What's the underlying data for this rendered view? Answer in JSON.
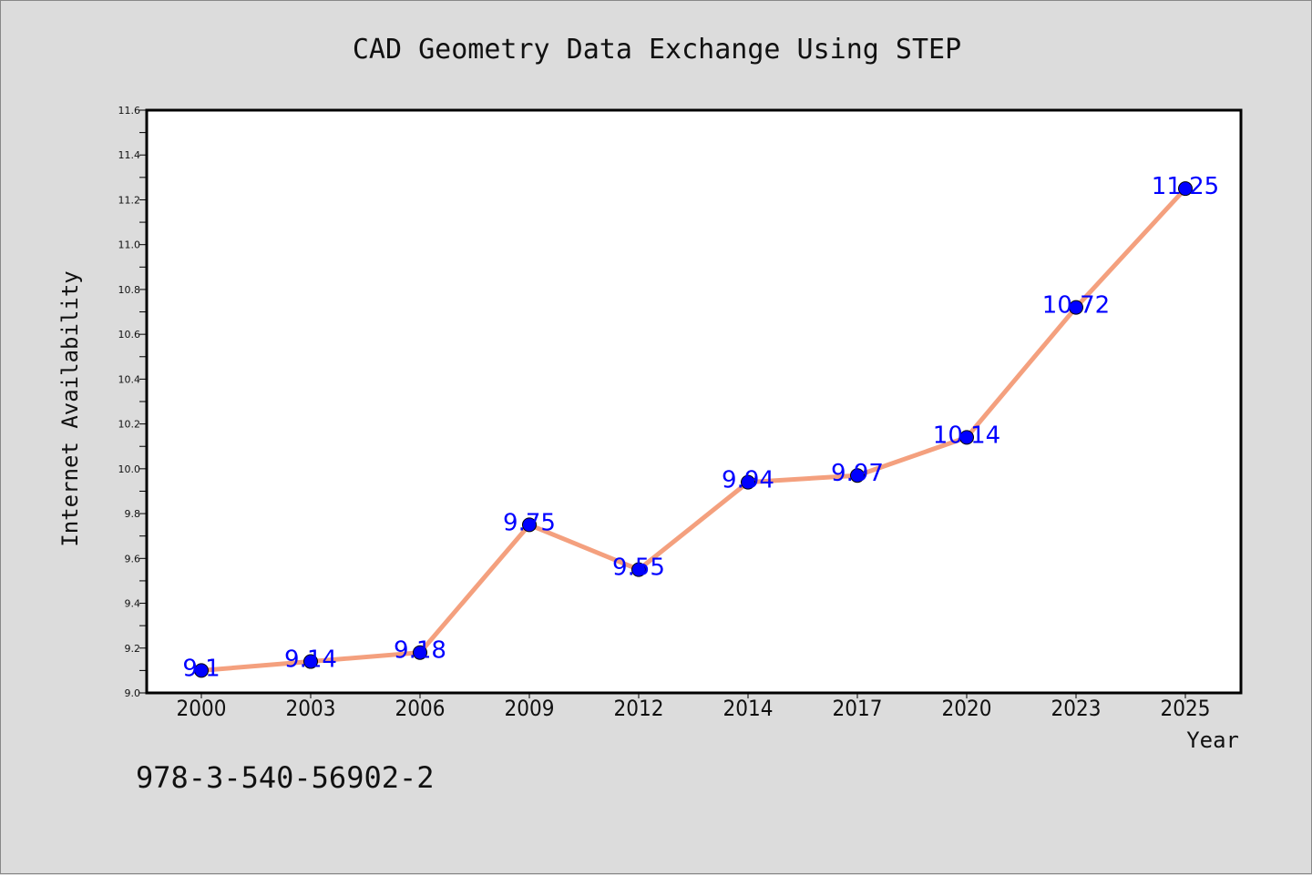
{
  "chart_data": {
    "type": "line",
    "title": "CAD Geometry Data Exchange Using STEP",
    "xlabel": "Year",
    "ylabel": "Internet Availability",
    "categories": [
      "2000",
      "2003",
      "2006",
      "2009",
      "2012",
      "2014",
      "2017",
      "2020",
      "2023",
      "2025"
    ],
    "series": [
      {
        "values": [
          9.1,
          9.14,
          9.18,
          9.75,
          9.55,
          9.94,
          9.97,
          10.14,
          10.72,
          11.25
        ],
        "data_labels": [
          "9.1",
          "9.14",
          "9.18",
          "9.75",
          "9.55",
          "9.94",
          "9.97",
          "10.14",
          "10.72",
          "11.25"
        ]
      }
    ],
    "ylim": [
      9.0,
      11.6
    ],
    "yticks": [
      "9.0",
      "9.2",
      "9.4",
      "9.6",
      "9.8",
      "10.0",
      "10.2",
      "10.4",
      "10.6",
      "10.8",
      "11.0",
      "11.2",
      "11.4",
      "11.6"
    ],
    "grid": false,
    "legend": "none",
    "colors": {
      "line": "#f4a07e",
      "marker": "#0000ff",
      "marker_edge": "#000000",
      "data_label": "#0000ff",
      "plot_background": "#ffffff",
      "figure_background": "#dcdcdc"
    }
  },
  "footer": {
    "isbn": "978-3-540-56902-2"
  }
}
